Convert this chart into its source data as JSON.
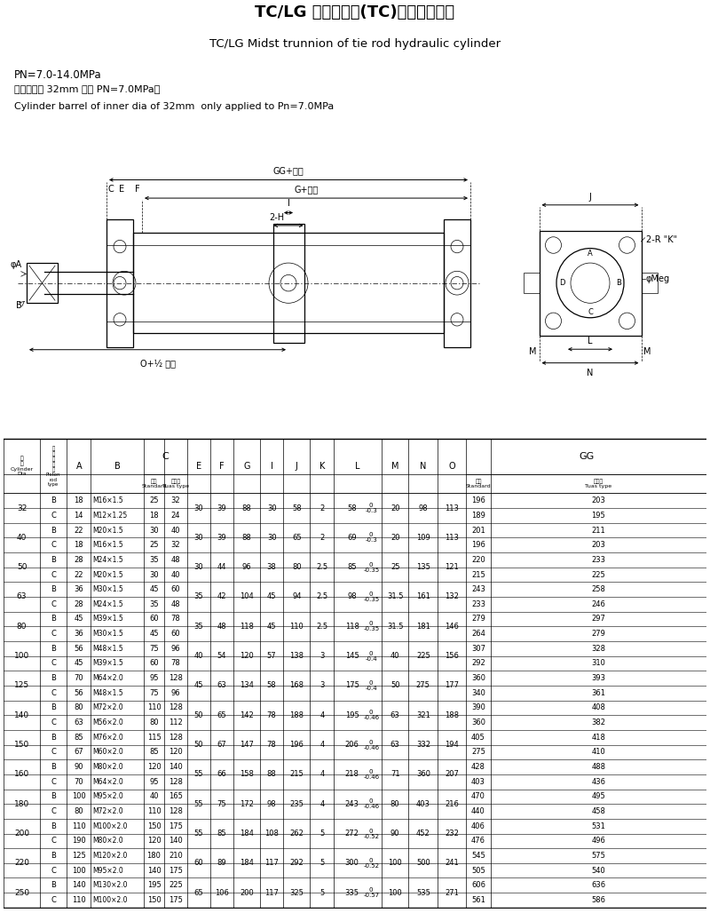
{
  "title_cn": "TC/LG 中间耳轴型(TC)拉杆式液压缸",
  "title_en": "TC/LG Midst trunnion of tie rod hydraulic cylinder",
  "note1": "PN=7.0-14.0MPa",
  "note2": "（缸筒内径 32mm 仅用 PN=7.0MPa）",
  "note3": "Cylinder barrel of inner dia of 32mm  only applied to Pn=7.0MPa",
  "rows": [
    {
      "dia": "32",
      "type": "B",
      "A": "18",
      "B": "M16×1.5",
      "C_std": "25",
      "C_tuas": "32",
      "E": "30",
      "F": "39",
      "G": "88",
      "I": "30",
      "J": "58",
      "K": "2",
      "L": "58",
      "L_tol": "0\n-0.3",
      "M": "20",
      "N": "98",
      "O": "113",
      "GG_std": "196",
      "GG_tuas": "203"
    },
    {
      "dia": "32",
      "type": "C",
      "A": "14",
      "B": "M12×1.25",
      "C_std": "18",
      "C_tuas": "24",
      "E": "",
      "F": "",
      "G": "",
      "I": "",
      "J": "",
      "K": "",
      "L": "",
      "L_tol": "",
      "M": "",
      "N": "",
      "O": "",
      "GG_std": "189",
      "GG_tuas": "195"
    },
    {
      "dia": "40",
      "type": "B",
      "A": "22",
      "B": "M20×1.5",
      "C_std": "30",
      "C_tuas": "40",
      "E": "30",
      "F": "39",
      "G": "88",
      "I": "30",
      "J": "65",
      "K": "2",
      "L": "69",
      "L_tol": "0\n-0.3",
      "M": "20",
      "N": "109",
      "O": "113",
      "GG_std": "201",
      "GG_tuas": "211"
    },
    {
      "dia": "40",
      "type": "C",
      "A": "18",
      "B": "M16×1.5",
      "C_std": "25",
      "C_tuas": "32",
      "E": "",
      "F": "",
      "G": "",
      "I": "",
      "J": "",
      "K": "",
      "L": "",
      "L_tol": "",
      "M": "",
      "N": "",
      "O": "",
      "GG_std": "196",
      "GG_tuas": "203"
    },
    {
      "dia": "50",
      "type": "B",
      "A": "28",
      "B": "M24×1.5",
      "C_std": "35",
      "C_tuas": "48",
      "E": "30",
      "F": "44",
      "G": "96",
      "I": "38",
      "J": "80",
      "K": "2.5",
      "L": "85",
      "L_tol": "0\n-0.35",
      "M": "25",
      "N": "135",
      "O": "121",
      "GG_std": "220",
      "GG_tuas": "233"
    },
    {
      "dia": "50",
      "type": "C",
      "A": "22",
      "B": "M20×1.5",
      "C_std": "30",
      "C_tuas": "40",
      "E": "",
      "F": "",
      "G": "",
      "I": "",
      "J": "",
      "K": "",
      "L": "",
      "L_tol": "",
      "M": "",
      "N": "",
      "O": "",
      "GG_std": "215",
      "GG_tuas": "225"
    },
    {
      "dia": "63",
      "type": "B",
      "A": "36",
      "B": "M30×1.5",
      "C_std": "45",
      "C_tuas": "60",
      "E": "35",
      "F": "42",
      "G": "104",
      "I": "45",
      "J": "94",
      "K": "2.5",
      "L": "98",
      "L_tol": "0\n-0.35",
      "M": "31.5",
      "N": "161",
      "O": "132",
      "GG_std": "243",
      "GG_tuas": "258"
    },
    {
      "dia": "63",
      "type": "C",
      "A": "28",
      "B": "M24×1.5",
      "C_std": "35",
      "C_tuas": "48",
      "E": "",
      "F": "",
      "G": "",
      "I": "",
      "J": "",
      "K": "",
      "L": "",
      "L_tol": "",
      "M": "",
      "N": "",
      "O": "",
      "GG_std": "233",
      "GG_tuas": "246"
    },
    {
      "dia": "80",
      "type": "B",
      "A": "45",
      "B": "M39×1.5",
      "C_std": "60",
      "C_tuas": "78",
      "E": "35",
      "F": "48",
      "G": "118",
      "I": "45",
      "J": "110",
      "K": "2.5",
      "L": "118",
      "L_tol": "0\n-0.35",
      "M": "31.5",
      "N": "181",
      "O": "146",
      "GG_std": "279",
      "GG_tuas": "297"
    },
    {
      "dia": "80",
      "type": "C",
      "A": "36",
      "B": "M30×1.5",
      "C_std": "45",
      "C_tuas": "60",
      "E": "",
      "F": "",
      "G": "",
      "I": "",
      "J": "",
      "K": "",
      "L": "",
      "L_tol": "",
      "M": "",
      "N": "",
      "O": "",
      "GG_std": "264",
      "GG_tuas": "279"
    },
    {
      "dia": "100",
      "type": "B",
      "A": "56",
      "B": "M48×1.5",
      "C_std": "75",
      "C_tuas": "96",
      "E": "40",
      "F": "54",
      "G": "120",
      "I": "57",
      "J": "138",
      "K": "3",
      "L": "145",
      "L_tol": "0\n-0.4",
      "M": "40",
      "N": "225",
      "O": "156",
      "GG_std": "307",
      "GG_tuas": "328"
    },
    {
      "dia": "100",
      "type": "C",
      "A": "45",
      "B": "M39×1.5",
      "C_std": "60",
      "C_tuas": "78",
      "E": "",
      "F": "",
      "G": "",
      "I": "",
      "J": "",
      "K": "",
      "L": "",
      "L_tol": "",
      "M": "",
      "N": "",
      "O": "",
      "GG_std": "292",
      "GG_tuas": "310"
    },
    {
      "dia": "125",
      "type": "B",
      "A": "70",
      "B": "M64×2.0",
      "C_std": "95",
      "C_tuas": "128",
      "E": "45",
      "F": "63",
      "G": "134",
      "I": "58",
      "J": "168",
      "K": "3",
      "L": "175",
      "L_tol": "0\n-0.4",
      "M": "50",
      "N": "275",
      "O": "177",
      "GG_std": "360",
      "GG_tuas": "393"
    },
    {
      "dia": "125",
      "type": "C",
      "A": "56",
      "B": "M48×1.5",
      "C_std": "75",
      "C_tuas": "96",
      "E": "",
      "F": "",
      "G": "",
      "I": "",
      "J": "",
      "K": "",
      "L": "",
      "L_tol": "",
      "M": "",
      "N": "",
      "O": "",
      "GG_std": "340",
      "GG_tuas": "361"
    },
    {
      "dia": "140",
      "type": "B",
      "A": "80",
      "B": "M72×2.0",
      "C_std": "110",
      "C_tuas": "128",
      "E": "50",
      "F": "65",
      "G": "142",
      "I": "78",
      "J": "188",
      "K": "4",
      "L": "195",
      "L_tol": "0\n-0.46",
      "M": "63",
      "N": "321",
      "O": "188",
      "GG_std": "390",
      "GG_tuas": "408"
    },
    {
      "dia": "140",
      "type": "C",
      "A": "63",
      "B": "M56×2.0",
      "C_std": "80",
      "C_tuas": "112",
      "E": "",
      "F": "",
      "G": "",
      "I": "",
      "J": "",
      "K": "",
      "L": "",
      "L_tol": "",
      "M": "",
      "N": "",
      "O": "",
      "GG_std": "360",
      "GG_tuas": "382"
    },
    {
      "dia": "150",
      "type": "B",
      "A": "85",
      "B": "M76×2.0",
      "C_std": "115",
      "C_tuas": "128",
      "E": "50",
      "F": "67",
      "G": "147",
      "I": "78",
      "J": "196",
      "K": "4",
      "L": "206",
      "L_tol": "0\n-0.46",
      "M": "63",
      "N": "332",
      "O": "194",
      "GG_std": "405",
      "GG_tuas": "418"
    },
    {
      "dia": "150",
      "type": "C",
      "A": "67",
      "B": "M60×2.0",
      "C_std": "85",
      "C_tuas": "120",
      "E": "",
      "F": "",
      "G": "",
      "I": "",
      "J": "",
      "K": "",
      "L": "",
      "L_tol": "",
      "M": "",
      "N": "",
      "O": "",
      "GG_std": "275",
      "GG_tuas": "410"
    },
    {
      "dia": "160",
      "type": "B",
      "A": "90",
      "B": "M80×2.0",
      "C_std": "120",
      "C_tuas": "140",
      "E": "55",
      "F": "66",
      "G": "158",
      "I": "88",
      "J": "215",
      "K": "4",
      "L": "218",
      "L_tol": "0\n-0.46",
      "M": "71",
      "N": "360",
      "O": "207",
      "GG_std": "428",
      "GG_tuas": "488"
    },
    {
      "dia": "160",
      "type": "C",
      "A": "70",
      "B": "M64×2.0",
      "C_std": "95",
      "C_tuas": "128",
      "E": "",
      "F": "",
      "G": "",
      "I": "",
      "J": "",
      "K": "",
      "L": "",
      "L_tol": "",
      "M": "",
      "N": "",
      "O": "",
      "GG_std": "403",
      "GG_tuas": "436"
    },
    {
      "dia": "180",
      "type": "B",
      "A": "100",
      "B": "M95×2.0",
      "C_std": "40",
      "C_tuas": "165",
      "E": "55",
      "F": "75",
      "G": "172",
      "I": "98",
      "J": "235",
      "K": "4",
      "L": "243",
      "L_tol": "0\n-0.46",
      "M": "80",
      "N": "403",
      "O": "216",
      "GG_std": "470",
      "GG_tuas": "495"
    },
    {
      "dia": "180",
      "type": "C",
      "A": "80",
      "B": "M72×2.0",
      "C_std": "110",
      "C_tuas": "128",
      "E": "",
      "F": "",
      "G": "",
      "I": "",
      "J": "",
      "K": "",
      "L": "",
      "L_tol": "",
      "M": "",
      "N": "",
      "O": "",
      "GG_std": "440",
      "GG_tuas": "458"
    },
    {
      "dia": "200",
      "type": "B",
      "A": "110",
      "B": "M100×2.0",
      "C_std": "150",
      "C_tuas": "175",
      "E": "55",
      "F": "85",
      "G": "184",
      "I": "108",
      "J": "262",
      "K": "5",
      "L": "272",
      "L_tol": "0\n-0.52",
      "M": "90",
      "N": "452",
      "O": "232",
      "GG_std": "406",
      "GG_tuas": "531"
    },
    {
      "dia": "200",
      "type": "C",
      "A": "190",
      "B": "M80×2.0",
      "C_std": "120",
      "C_tuas": "140",
      "E": "",
      "F": "",
      "G": "",
      "I": "",
      "J": "",
      "K": "",
      "L": "",
      "L_tol": "",
      "M": "",
      "N": "",
      "O": "",
      "GG_std": "476",
      "GG_tuas": "496"
    },
    {
      "dia": "220",
      "type": "B",
      "A": "125",
      "B": "M120×2.0",
      "C_std": "180",
      "C_tuas": "210",
      "E": "60",
      "F": "89",
      "G": "184",
      "I": "117",
      "J": "292",
      "K": "5",
      "L": "300",
      "L_tol": "0\n-0.52",
      "M": "100",
      "N": "500",
      "O": "241",
      "GG_std": "545",
      "GG_tuas": "575"
    },
    {
      "dia": "220",
      "type": "C",
      "A": "100",
      "B": "M95×2.0",
      "C_std": "140",
      "C_tuas": "175",
      "E": "",
      "F": "",
      "G": "",
      "I": "",
      "J": "",
      "K": "",
      "L": "",
      "L_tol": "",
      "M": "",
      "N": "",
      "O": "",
      "GG_std": "505",
      "GG_tuas": "540"
    },
    {
      "dia": "250",
      "type": "B",
      "A": "140",
      "B": "M130×2.0",
      "C_std": "195",
      "C_tuas": "225",
      "E": "65",
      "F": "106",
      "G": "200",
      "I": "117",
      "J": "325",
      "K": "5",
      "L": "335",
      "L_tol": "0\n-0.57",
      "M": "100",
      "N": "535",
      "O": "271",
      "GG_std": "606",
      "GG_tuas": "636"
    },
    {
      "dia": "250",
      "type": "C",
      "A": "110",
      "B": "M100×2.0",
      "C_std": "150",
      "C_tuas": "175",
      "E": "",
      "F": "",
      "G": "",
      "I": "",
      "J": "",
      "K": "",
      "L": "",
      "L_tol": "",
      "M": "",
      "N": "",
      "O": "",
      "GG_std": "561",
      "GG_tuas": "586"
    }
  ]
}
